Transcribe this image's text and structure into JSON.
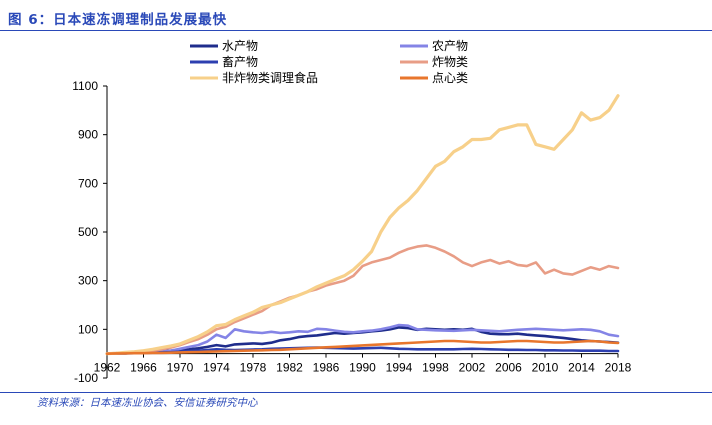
{
  "figure": {
    "title": "图 6：日本速冻调理制品发展最快",
    "source": "资料来源：日本速冻业协会、安信证券研究中心"
  },
  "chart_data": {
    "type": "line",
    "title": "",
    "xlabel": "",
    "ylabel": "",
    "x": [
      1962,
      1963,
      1964,
      1965,
      1966,
      1967,
      1968,
      1969,
      1970,
      1971,
      1972,
      1973,
      1974,
      1975,
      1976,
      1977,
      1978,
      1979,
      1980,
      1981,
      1982,
      1983,
      1984,
      1985,
      1986,
      1987,
      1988,
      1989,
      1990,
      1991,
      1992,
      1993,
      1994,
      1995,
      1996,
      1997,
      1998,
      1999,
      2000,
      2001,
      2002,
      2003,
      2004,
      2005,
      2006,
      2007,
      2008,
      2009,
      2010,
      2011,
      2012,
      2013,
      2014,
      2015,
      2016,
      2017,
      2018
    ],
    "xticks": [
      1962,
      1966,
      1970,
      1974,
      1978,
      1982,
      1986,
      1990,
      1994,
      1998,
      2002,
      2006,
      2010,
      2014,
      2018
    ],
    "ylim": [
      -100,
      1100
    ],
    "yticks": [
      -100,
      100,
      300,
      500,
      700,
      900,
      1100
    ],
    "legend_position": "top",
    "series": [
      {
        "name": "水产物",
        "color": "#1f2d8c",
        "values": [
          1,
          2,
          4,
          5,
          6,
          8,
          10,
          12,
          15,
          18,
          22,
          28,
          35,
          30,
          38,
          40,
          42,
          40,
          45,
          55,
          60,
          68,
          72,
          75,
          80,
          85,
          82,
          85,
          88,
          92,
          95,
          100,
          108,
          105,
          98,
          102,
          100,
          98,
          100,
          98,
          102,
          90,
          82,
          80,
          80,
          82,
          78,
          75,
          72,
          68,
          65,
          60,
          55,
          52,
          50,
          48,
          45
        ]
      },
      {
        "name": "农产物",
        "color": "#8484e6",
        "values": [
          1,
          2,
          3,
          4,
          5,
          6,
          8,
          12,
          20,
          28,
          35,
          50,
          78,
          65,
          100,
          92,
          88,
          85,
          90,
          85,
          88,
          92,
          90,
          102,
          100,
          95,
          90,
          88,
          92,
          95,
          100,
          108,
          118,
          115,
          100,
          98,
          96,
          95,
          94,
          96,
          98,
          96,
          94,
          92,
          95,
          98,
          100,
          102,
          100,
          98,
          96,
          98,
          100,
          98,
          92,
          78,
          72
        ]
      },
      {
        "name": "畜产物",
        "color": "#2d3fb0",
        "values": [
          0,
          1,
          1,
          2,
          3,
          4,
          5,
          6,
          8,
          10,
          12,
          15,
          18,
          16,
          15,
          16,
          17,
          18,
          20,
          21,
          22,
          23,
          24,
          25,
          24,
          23,
          22,
          21,
          22,
          23,
          24,
          22,
          20,
          19,
          18,
          18,
          18,
          18,
          18,
          19,
          20,
          19,
          18,
          17,
          16,
          16,
          15,
          15,
          14,
          14,
          13,
          13,
          12,
          12,
          12,
          11,
          11
        ]
      },
      {
        "name": "炸物类",
        "color": "#e89d86",
        "values": [
          0,
          1,
          2,
          5,
          8,
          12,
          18,
          25,
          35,
          48,
          60,
          78,
          100,
          110,
          130,
          145,
          160,
          175,
          200,
          215,
          230,
          240,
          255,
          265,
          280,
          290,
          300,
          320,
          360,
          375,
          385,
          395,
          415,
          430,
          440,
          445,
          435,
          420,
          400,
          375,
          360,
          375,
          385,
          370,
          380,
          365,
          360,
          375,
          330,
          345,
          330,
          325,
          340,
          355,
          345,
          360,
          352
        ]
      },
      {
        "name": "非炸物类调理食品",
        "color": "#f7d08a",
        "values": [
          0,
          2,
          5,
          8,
          12,
          18,
          25,
          32,
          40,
          55,
          70,
          90,
          115,
          120,
          140,
          155,
          170,
          190,
          200,
          210,
          225,
          240,
          255,
          275,
          290,
          305,
          320,
          345,
          380,
          420,
          500,
          560,
          600,
          630,
          670,
          720,
          770,
          790,
          830,
          850,
          880,
          880,
          885,
          920,
          930,
          940,
          940,
          860,
          850,
          840,
          880,
          920,
          990,
          960,
          970,
          1000,
          1060
        ]
      },
      {
        "name": "点心类",
        "color": "#e8762d",
        "values": [
          0,
          1,
          1,
          2,
          2,
          3,
          3,
          4,
          5,
          6,
          7,
          8,
          9,
          10,
          11,
          12,
          13,
          14,
          15,
          16,
          18,
          20,
          22,
          24,
          26,
          28,
          30,
          32,
          34,
          36,
          38,
          40,
          42,
          44,
          46,
          48,
          50,
          52,
          52,
          50,
          48,
          46,
          46,
          48,
          50,
          52,
          52,
          50,
          48,
          46,
          46,
          48,
          50,
          52,
          50,
          46,
          44
        ]
      }
    ]
  }
}
